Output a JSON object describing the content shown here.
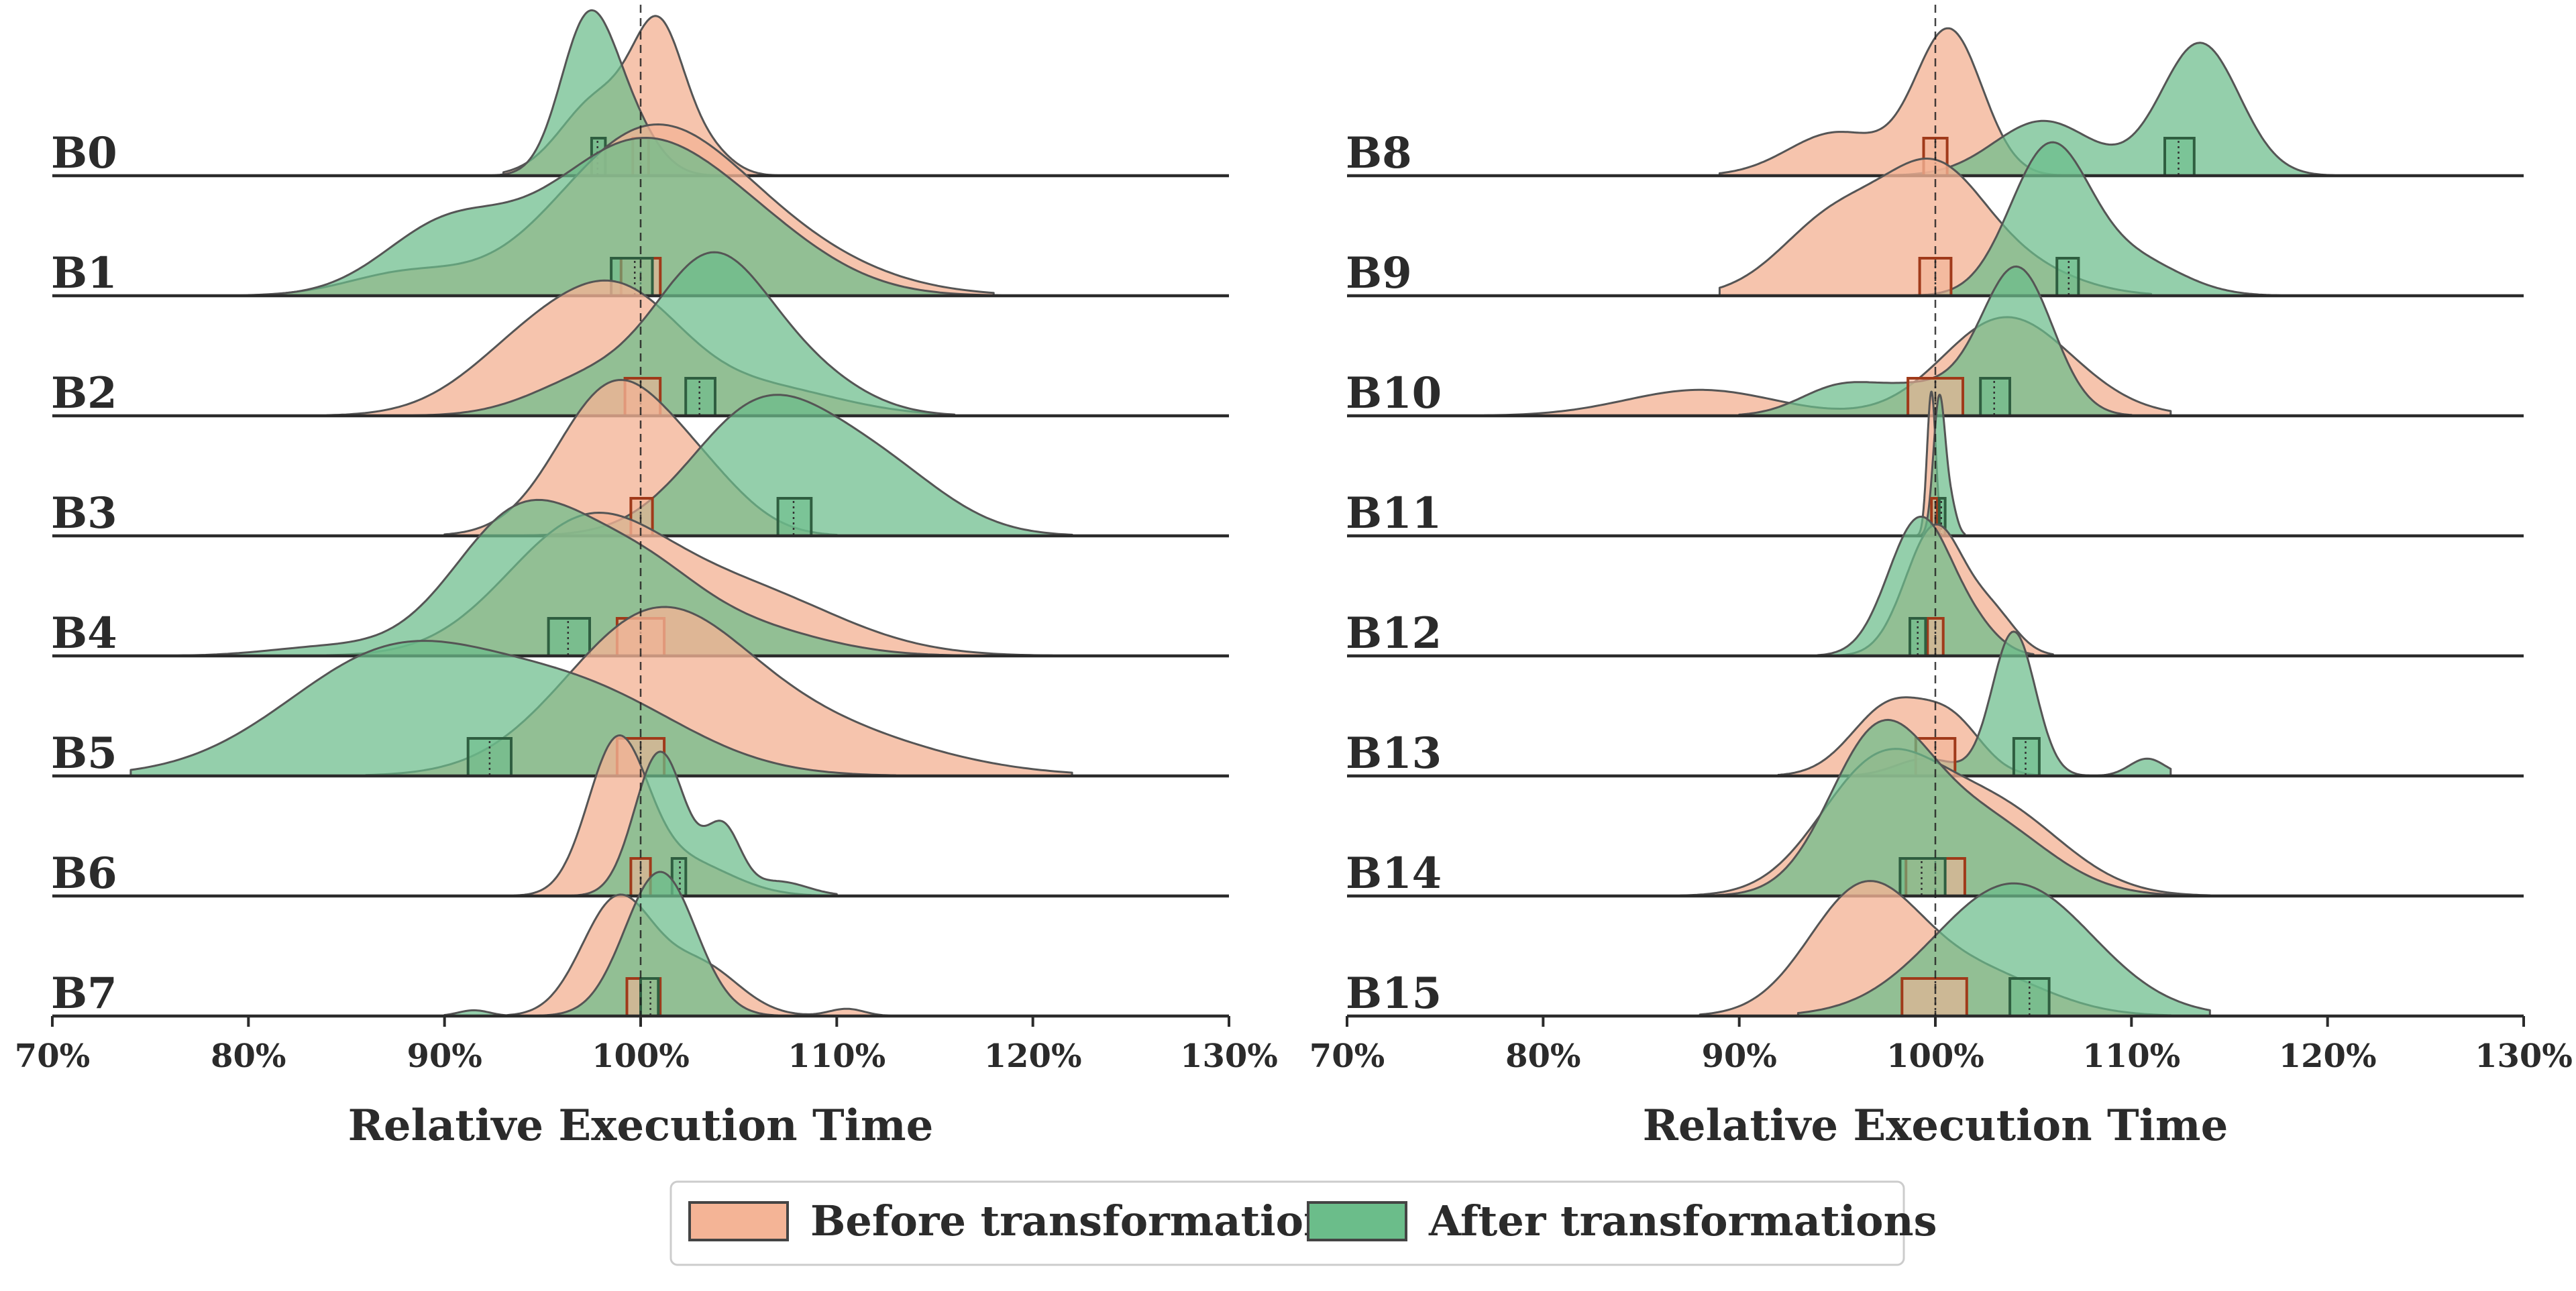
{
  "chart_data": [
    {
      "type": "ridgeline",
      "xlabel": "Relative Execution Time",
      "xlim": [
        70,
        130
      ],
      "xticks": [
        "70%",
        "80%",
        "90%",
        "100%",
        "110%",
        "120%",
        "130%"
      ],
      "reference_line": 100,
      "rows": [
        {
          "label": "B0",
          "before": {
            "peaks": [
              [
                98,
                2.0,
                0.55
              ],
              [
                101,
                1.3,
                0.9
              ],
              [
                103.5,
                1.2,
                0.15
              ]
            ],
            "range": [
              93,
              107
            ],
            "iqr": [
              99.6,
              100.4
            ],
            "median": 100.0
          },
          "after": {
            "peaks": [
              [
                97.3,
                1.4,
                1.05
              ],
              [
                99.5,
                1.4,
                0.3
              ]
            ],
            "range": [
              92,
              105
            ],
            "iqr": [
              97.5,
              98.2
            ],
            "median": 97.8
          }
        },
        {
          "label": "B1",
          "before": {
            "peaks": [
              [
                88,
                3,
                0.15
              ],
              [
                100,
                4.5,
                1.0
              ],
              [
                106,
                5,
                0.35
              ]
            ],
            "range": [
              80,
              118
            ],
            "iqr": [
              99,
              101
            ],
            "median": 100.0
          },
          "after": {
            "peaks": [
              [
                90,
                3.2,
                0.45
              ],
              [
                99.5,
                4.5,
                1.0
              ],
              [
                106,
                4,
                0.3
              ]
            ],
            "range": [
              78,
              120
            ],
            "iqr": [
              98.5,
              100.6
            ],
            "median": 99.7
          }
        },
        {
          "label": "B2",
          "before": {
            "peaks": [
              [
                95,
                3.5,
                0.55
              ],
              [
                99.5,
                3,
                0.6
              ],
              [
                106,
                4,
                0.2
              ]
            ],
            "range": [
              84,
              115
            ],
            "iqr": [
              99.2,
              101
            ],
            "median": 100.0
          },
          "after": {
            "peaks": [
              [
                97.5,
                3,
                0.25
              ],
              [
                103.5,
                2.8,
                1.0
              ],
              [
                108,
                3,
                0.3
              ]
            ],
            "range": [
              88,
              116
            ],
            "iqr": [
              102.3,
              103.8
            ],
            "median": 103.0
          }
        },
        {
          "label": "B3",
          "before": {
            "peaks": [
              [
                98.5,
                2.8,
                1.0
              ],
              [
                103,
                2.5,
                0.35
              ]
            ],
            "range": [
              90,
              110
            ],
            "iqr": [
              99.5,
              100.6
            ],
            "median": 100.0
          },
          "after": {
            "peaks": [
              [
                106,
                3.5,
                0.85
              ],
              [
                112,
                3.5,
                0.45
              ]
            ],
            "range": [
              94,
              122
            ],
            "iqr": [
              107,
              108.7
            ],
            "median": 107.8
          }
        },
        {
          "label": "B4",
          "before": {
            "peaks": [
              [
                97,
                4,
                0.85
              ],
              [
                105,
                5,
                0.45
              ]
            ],
            "range": [
              84,
              121
            ],
            "iqr": [
              98.8,
              101.2
            ],
            "median": 100.0
          },
          "after": {
            "peaks": [
              [
                84,
                3,
                0.06
              ],
              [
                94,
                3.5,
                1.0
              ],
              [
                100,
                3,
                0.45
              ],
              [
                105,
                4,
                0.2
              ]
            ],
            "range": [
              75,
              120
            ],
            "iqr": [
              95.3,
              97.4
            ],
            "median": 96.3
          }
        },
        {
          "label": "B5",
          "before": {
            "peaks": [
              [
                100.5,
                4.5,
                1.0
              ],
              [
                108,
                6,
                0.35
              ]
            ],
            "range": [
              86,
              122
            ],
            "iqr": [
              98.8,
              101.2
            ],
            "median": 100.0
          },
          "after": {
            "peaks": [
              [
                87.5,
                5.5,
                0.85
              ],
              [
                97.5,
                5,
                0.5
              ]
            ],
            "range": [
              74,
              113
            ],
            "iqr": [
              91.2,
              93.4
            ],
            "median": 92.3
          }
        },
        {
          "label": "B6",
          "before": {
            "peaks": [
              [
                98.8,
                1.5,
                1.0
              ],
              [
                102,
                2.5,
                0.25
              ]
            ],
            "range": [
              93,
              110
            ],
            "iqr": [
              99.5,
              100.5
            ],
            "median": 100.0
          },
          "after": {
            "peaks": [
              [
                101,
                1.3,
                1.0
              ],
              [
                104.2,
                0.9,
                0.45
              ],
              [
                107,
                1.5,
                0.1
              ]
            ],
            "range": [
              96,
              110
            ],
            "iqr": [
              101.6,
              102.3
            ],
            "median": 102.0
          }
        },
        {
          "label": "B7",
          "before": {
            "peaks": [
              [
                98.8,
                1.8,
                0.8
              ],
              [
                103,
                2,
                0.35
              ],
              [
                110.5,
                0.9,
                0.05
              ]
            ],
            "range": [
              92,
              113
            ],
            "iqr": [
              99.3,
              101
            ],
            "median": 100.0
          },
          "after": {
            "peaks": [
              [
                91.5,
                0.8,
                0.04
              ],
              [
                101,
                1.8,
                1.0
              ]
            ],
            "range": [
              90,
              107
            ],
            "iqr": [
              100,
              100.9
            ],
            "median": 100.5
          }
        }
      ]
    },
    {
      "type": "ridgeline",
      "xlabel": "Relative Execution Time",
      "xlim": [
        70,
        130
      ],
      "xticks": [
        "70%",
        "80%",
        "90%",
        "100%",
        "110%",
        "120%",
        "130%"
      ],
      "reference_line": 100,
      "rows": [
        {
          "label": "B8",
          "before": {
            "peaks": [
              [
                95,
                2.5,
                0.3
              ],
              [
                100.7,
                1.7,
                1.0
              ]
            ],
            "range": [
              89,
              107
            ],
            "iqr": [
              99.4,
              100.6
            ],
            "median": 100.0
          },
          "after": {
            "peaks": [
              [
                105.5,
                2.5,
                0.38
              ],
              [
                113.5,
                2,
                0.92
              ]
            ],
            "range": [
              97,
              121
            ],
            "iqr": [
              111.7,
              113.2
            ],
            "median": 112.4
          }
        },
        {
          "label": "B9",
          "before": {
            "peaks": [
              [
                95,
                2.8,
                0.55
              ],
              [
                100,
                2.5,
                0.75
              ],
              [
                104,
                3,
                0.2
              ]
            ],
            "range": [
              89,
              111
            ],
            "iqr": [
              99.2,
              100.8
            ],
            "median": 100.0
          },
          "after": {
            "peaks": [
              [
                105.8,
                2,
                1.0
              ],
              [
                110,
                2.5,
                0.25
              ]
            ],
            "range": [
              98,
              118
            ],
            "iqr": [
              106.2,
              107.3
            ],
            "median": 106.8
          }
        },
        {
          "label": "B10",
          "before": {
            "peaks": [
              [
                88,
                3.8,
                0.18
              ],
              [
                103,
                3,
                0.55
              ],
              [
                106,
                3,
                0.2
              ]
            ],
            "range": [
              77,
              112
            ],
            "iqr": [
              98.6,
              101.4
            ],
            "median": 100.0
          },
          "after": {
            "peaks": [
              [
                95,
                2,
                0.18
              ],
              [
                104.2,
                1.8,
                1.0
              ],
              [
                99.5,
                2.5,
                0.2
              ]
            ],
            "range": [
              90,
              110
            ],
            "iqr": [
              102.3,
              103.8
            ],
            "median": 103.0
          }
        },
        {
          "label": "B11",
          "before": {
            "peaks": [
              [
                99.8,
                0.22,
                1.0
              ]
            ],
            "range": [
              99,
              101
            ],
            "iqr": [
              99.8,
              100.1
            ],
            "median": 100.0
          },
          "after": {
            "peaks": [
              [
                100.2,
                0.3,
                0.95
              ],
              [
                100.8,
                0.3,
                0.2
              ]
            ],
            "range": [
              99.3,
              101.5
            ],
            "iqr": [
              100.2,
              100.5
            ],
            "median": 100.3
          }
        },
        {
          "label": "B12",
          "before": {
            "peaks": [
              [
                100,
                1.5,
                0.9
              ],
              [
                103,
                1.2,
                0.25
              ]
            ],
            "range": [
              95,
              106
            ],
            "iqr": [
              99.6,
              100.4
            ],
            "median": 100.0
          },
          "after": {
            "peaks": [
              [
                99.2,
                1.6,
                0.95
              ],
              [
                102,
                1.3,
                0.15
              ]
            ],
            "range": [
              94,
              105
            ],
            "iqr": [
              98.7,
              99.5
            ],
            "median": 99.1
          }
        },
        {
          "label": "B13",
          "before": {
            "peaks": [
              [
                97.8,
                2,
                0.5
              ],
              [
                101,
                1.5,
                0.3
              ]
            ],
            "range": [
              92,
              106
            ],
            "iqr": [
              99,
              101
            ],
            "median": 100.0
          },
          "after": {
            "peaks": [
              [
                104,
                1.1,
                1.0
              ],
              [
                99.5,
                1.5,
                0.12
              ],
              [
                110.8,
                0.9,
                0.12
              ]
            ],
            "range": [
              96,
              112
            ],
            "iqr": [
              104,
              105.3
            ],
            "median": 104.6
          }
        },
        {
          "label": "B14",
          "before": {
            "peaks": [
              [
                97,
                3,
                0.85
              ],
              [
                103,
                3.5,
                0.6
              ]
            ],
            "range": [
              87,
              114
            ],
            "iqr": [
              98.5,
              101.5
            ],
            "median": 100.0
          },
          "after": {
            "peaks": [
              [
                97,
                2.5,
                1.0
              ],
              [
                102,
                3.5,
                0.55
              ]
            ],
            "range": [
              88,
              114
            ],
            "iqr": [
              98.2,
              100.5
            ],
            "median": 99.3
          }
        },
        {
          "label": "B15",
          "before": {
            "peaks": [
              [
                96.3,
                2.8,
                0.85
              ],
              [
                102,
                3.5,
                0.3
              ]
            ],
            "range": [
              88,
              112
            ],
            "iqr": [
              98.3,
              101.6
            ],
            "median": 100.0
          },
          "after": {
            "peaks": [
              [
                104,
                4,
                0.92
              ]
            ],
            "range": [
              93,
              114
            ],
            "iqr": [
              103.8,
              105.8
            ],
            "median": 104.8
          }
        }
      ]
    }
  ],
  "legend": {
    "position": "bottom-center",
    "items": [
      {
        "label": "Before transformations",
        "color": "#f4b496",
        "edge": "#444444"
      },
      {
        "label": "After transformations",
        "color": "#6bbd8a",
        "edge": "#444444"
      }
    ]
  },
  "colors": {
    "before_fill": "#f4b496",
    "after_fill": "#6bbd8a",
    "before_box_edge": "#a03a1a",
    "after_box_edge": "#2f5e40",
    "curve_edge": "#555555",
    "baseline": "#2b2b2b"
  }
}
